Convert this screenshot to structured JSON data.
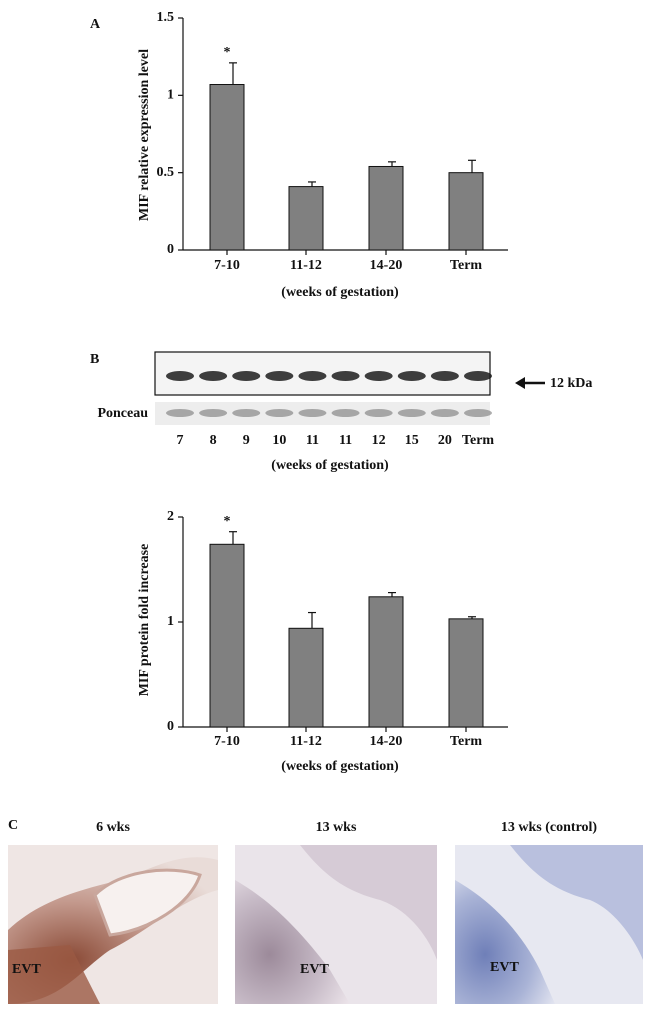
{
  "panel_labels": [
    "A",
    "B",
    "C"
  ],
  "chart_data": [
    {
      "type": "bar",
      "ylabel": "MIF relative expression level",
      "xlabel": "(weeks of gestation)",
      "categories": [
        "7-10",
        "11-12",
        "14-20",
        "Term"
      ],
      "values": [
        1.07,
        0.41,
        0.54,
        0.5
      ],
      "errors": [
        0.14,
        0.03,
        0.03,
        0.08
      ],
      "significance": [
        "*",
        null,
        null,
        null
      ],
      "color": "#808080",
      "ylim": [
        0,
        1.5
      ],
      "yticks": [
        0,
        0.5,
        1,
        1.5
      ]
    },
    {
      "type": "bar",
      "ylabel": "MIF protein fold increase",
      "xlabel": "(weeks of gestation)",
      "categories": [
        "7-10",
        "11-12",
        "14-20",
        "Term"
      ],
      "values": [
        1.74,
        0.94,
        1.24,
        1.03
      ],
      "errors": [
        0.12,
        0.15,
        0.04,
        0.02
      ],
      "significance": [
        "*",
        null,
        null,
        null
      ],
      "color": "#808080",
      "ylim": [
        0,
        2
      ],
      "yticks": [
        0,
        1,
        2
      ]
    }
  ],
  "blot": {
    "lanes": [
      "7",
      "8",
      "9",
      "10",
      "11",
      "11",
      "12",
      "15",
      "20",
      "Term"
    ],
    "band_label": "12 kDa",
    "loading_label": "Ponceau",
    "xlabel": "(weeks of gestation)"
  },
  "micrographs": [
    {
      "title": "6 wks",
      "label": "EVT"
    },
    {
      "title": "13 wks",
      "label": "EVT"
    },
    {
      "title": "13 wks (control)",
      "label": "EVT"
    }
  ]
}
